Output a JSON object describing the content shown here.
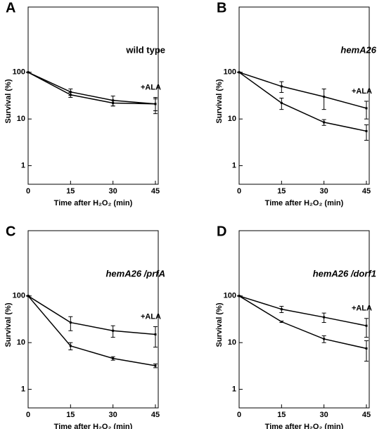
{
  "chart_data": [
    {
      "type": "line",
      "panel": "A",
      "title": "wild type",
      "title_italic": false,
      "x_label": "Time  after H₂O₂ (min)",
      "y_label": "Survival (%)",
      "x": [
        0,
        15,
        30,
        45
      ],
      "xlim": [
        0,
        46
      ],
      "xticks": [
        0,
        15,
        30,
        45
      ],
      "ylim": [
        0.4,
        2500
      ],
      "yticks": [
        1,
        10,
        100
      ],
      "log_y": true,
      "series": [
        {
          "values": [
            100,
            33,
            22,
            21
          ],
          "errors": [
            0,
            4,
            3,
            6
          ],
          "color": "#000000"
        },
        {
          "name": "+ALA",
          "values": [
            100,
            38,
            25,
            21
          ],
          "errors": [
            0,
            6,
            6,
            8
          ],
          "color": "#000000"
        }
      ]
    },
    {
      "type": "line",
      "panel": "B",
      "title": "hemA26",
      "title_italic": true,
      "x_label": "Time  after H₂O₂ (min)",
      "y_label": "Survival (%)",
      "x": [
        0,
        15,
        30,
        45
      ],
      "xlim": [
        0,
        46
      ],
      "xticks": [
        0,
        15,
        30,
        45
      ],
      "ylim": [
        0.4,
        2500
      ],
      "yticks": [
        1,
        10,
        100
      ],
      "log_y": true,
      "series": [
        {
          "values": [
            100,
            22,
            8.5,
            5.5
          ],
          "errors": [
            0,
            6,
            1.2,
            2
          ],
          "color": "#000000"
        },
        {
          "name": "+ALA",
          "values": [
            100,
            50,
            30,
            17
          ],
          "errors": [
            0,
            13,
            14,
            7
          ],
          "color": "#000000"
        }
      ]
    },
    {
      "type": "line",
      "panel": "C",
      "title": "hemA26 /prfA",
      "title_italic": true,
      "x_label": "Time  after H₂O₂ (min)",
      "y_label": "Survival (%)",
      "x": [
        0,
        15,
        30,
        45
      ],
      "xlim": [
        0,
        46
      ],
      "xticks": [
        0,
        15,
        30,
        45
      ],
      "ylim": [
        0.4,
        2500
      ],
      "yticks": [
        1,
        10,
        100
      ],
      "log_y": true,
      "series": [
        {
          "values": [
            100,
            8.5,
            4.6,
            3.2
          ],
          "errors": [
            0,
            1.5,
            0.4,
            0.3
          ],
          "color": "#000000"
        },
        {
          "name": "+ALA",
          "values": [
            100,
            27,
            18,
            15
          ],
          "errors": [
            0,
            9,
            5,
            7
          ],
          "color": "#000000"
        }
      ]
    },
    {
      "type": "line",
      "panel": "D",
      "title": "hemA26 /dorf1",
      "title_italic": true,
      "x_label": "Time  after H₂O₂ (min)",
      "y_label": "Survival (%)",
      "x": [
        0,
        15,
        30,
        45
      ],
      "xlim": [
        0,
        46
      ],
      "xticks": [
        0,
        15,
        30,
        45
      ],
      "ylim": [
        0.4,
        2500
      ],
      "yticks": [
        1,
        10,
        100
      ],
      "log_y": true,
      "series": [
        {
          "values": [
            100,
            28,
            12,
            7.5
          ],
          "errors": [
            0,
            1,
            2,
            3.5
          ],
          "color": "#000000"
        },
        {
          "name": "+ALA",
          "values": [
            100,
            52,
            35,
            23
          ],
          "errors": [
            0,
            8,
            8,
            10
          ],
          "color": "#000000"
        }
      ]
    }
  ]
}
